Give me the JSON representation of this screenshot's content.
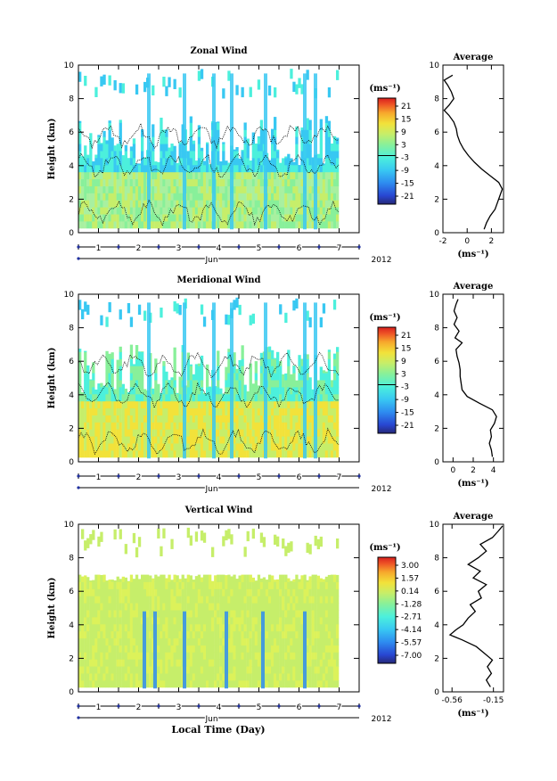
{
  "figure": {
    "xlabel": "Local Time (Day)"
  },
  "chart_data": [
    {
      "type": "heatmap",
      "title": "Zonal Wind",
      "ylabel": "Height (km)",
      "ylim": [
        0,
        10
      ],
      "yticks": [
        "0",
        "2",
        "4",
        "6",
        "8",
        "10"
      ],
      "xticks": [
        "1",
        "2",
        "3",
        "4",
        "5",
        "6",
        "7"
      ],
      "month_label": "Jun",
      "year_label": "2012",
      "colorbar": {
        "unit": "(ms⁻¹)",
        "ticks": [
          "21",
          "15",
          "9",
          "3",
          "-3",
          "-9",
          "-15",
          "-21"
        ]
      },
      "average": {
        "title": "Average",
        "xlabel": "(ms⁻¹)",
        "xticks": [
          "-2",
          "0",
          "2"
        ],
        "xlim": [
          -2,
          3
        ],
        "yticks": [
          "0",
          "2",
          "4",
          "6",
          "8",
          "10"
        ],
        "profile": [
          {
            "h": 0.2,
            "v": 1.4
          },
          {
            "h": 0.6,
            "v": 1.6
          },
          {
            "h": 1.0,
            "v": 1.9
          },
          {
            "h": 1.4,
            "v": 2.3
          },
          {
            "h": 1.8,
            "v": 2.5
          },
          {
            "h": 2.2,
            "v": 2.7
          },
          {
            "h": 2.6,
            "v": 2.9
          },
          {
            "h": 3.0,
            "v": 2.6
          },
          {
            "h": 3.4,
            "v": 1.9
          },
          {
            "h": 3.8,
            "v": 1.2
          },
          {
            "h": 4.2,
            "v": 0.6
          },
          {
            "h": 4.6,
            "v": 0.1
          },
          {
            "h": 5.0,
            "v": -0.3
          },
          {
            "h": 5.4,
            "v": -0.6
          },
          {
            "h": 5.8,
            "v": -0.8
          },
          {
            "h": 6.2,
            "v": -0.9
          },
          {
            "h": 6.6,
            "v": -1.1
          },
          {
            "h": 7.0,
            "v": -1.5
          },
          {
            "h": 7.3,
            "v": -1.9
          },
          {
            "h": 7.6,
            "v": -1.5
          },
          {
            "h": 8.0,
            "v": -1.1
          },
          {
            "h": 8.4,
            "v": -1.3
          },
          {
            "h": 8.8,
            "v": -1.6
          },
          {
            "h": 9.1,
            "v": -1.9
          },
          {
            "h": 9.4,
            "v": -1.2
          }
        ]
      }
    },
    {
      "type": "heatmap",
      "title": "Meridional Wind",
      "ylabel": "Height (km)",
      "ylim": [
        0,
        10
      ],
      "yticks": [
        "0",
        "2",
        "4",
        "6",
        "8",
        "10"
      ],
      "xticks": [
        "1",
        "2",
        "3",
        "4",
        "5",
        "6",
        "7"
      ],
      "month_label": "Jun",
      "year_label": "2012",
      "colorbar": {
        "unit": "(ms⁻¹)",
        "ticks": [
          "21",
          "15",
          "9",
          "3",
          "-3",
          "-9",
          "-15",
          "-21"
        ]
      },
      "average": {
        "title": "Average",
        "xlabel": "(ms⁻¹)",
        "xticks": [
          "0",
          "2",
          "4"
        ],
        "xlim": [
          -1,
          5
        ],
        "yticks": [
          "0",
          "2",
          "4",
          "6",
          "8",
          "10"
        ],
        "profile": [
          {
            "h": 0.3,
            "v": 3.9
          },
          {
            "h": 0.7,
            "v": 3.8
          },
          {
            "h": 1.1,
            "v": 3.6
          },
          {
            "h": 1.5,
            "v": 3.8
          },
          {
            "h": 1.9,
            "v": 3.7
          },
          {
            "h": 2.3,
            "v": 4.1
          },
          {
            "h": 2.7,
            "v": 4.3
          },
          {
            "h": 3.1,
            "v": 3.9
          },
          {
            "h": 3.5,
            "v": 2.6
          },
          {
            "h": 3.9,
            "v": 1.4
          },
          {
            "h": 4.3,
            "v": 0.9
          },
          {
            "h": 4.7,
            "v": 0.8
          },
          {
            "h": 5.1,
            "v": 0.7
          },
          {
            "h": 5.5,
            "v": 0.7
          },
          {
            "h": 5.9,
            "v": 0.6
          },
          {
            "h": 6.3,
            "v": 0.4
          },
          {
            "h": 6.7,
            "v": 0.3
          },
          {
            "h": 7.1,
            "v": 0.9
          },
          {
            "h": 7.4,
            "v": 0.2
          },
          {
            "h": 7.8,
            "v": 0.6
          },
          {
            "h": 8.2,
            "v": 0.1
          },
          {
            "h": 8.6,
            "v": 0.4
          },
          {
            "h": 9.0,
            "v": 0.1
          },
          {
            "h": 9.4,
            "v": 0.3
          },
          {
            "h": 9.7,
            "v": 0.5
          }
        ]
      }
    },
    {
      "type": "heatmap",
      "title": "Vertical Wind",
      "ylabel": "Height (km)",
      "ylim": [
        0,
        10
      ],
      "yticks": [
        "0",
        "2",
        "4",
        "6",
        "8",
        "10"
      ],
      "xticks": [
        "1",
        "2",
        "3",
        "4",
        "5",
        "6",
        "7"
      ],
      "month_label": "Jun",
      "year_label": "2012",
      "colorbar": {
        "unit": "(ms⁻¹)",
        "ticks": [
          "3.00",
          "1.57",
          "0.14",
          "-1.28",
          "-2.71",
          "-4.14",
          "-5.57",
          "-7.00"
        ]
      },
      "average": {
        "title": "Average",
        "xlabel": "(ms⁻¹)",
        "xticks": [
          "-0.56",
          "-0.15"
        ],
        "xlim": [
          -0.65,
          -0.05
        ],
        "yticks": [
          "0",
          "2",
          "4",
          "6",
          "8",
          "10"
        ],
        "profile": [
          {
            "h": 0.3,
            "v": -0.18
          },
          {
            "h": 0.7,
            "v": -0.22
          },
          {
            "h": 1.1,
            "v": -0.17
          },
          {
            "h": 1.5,
            "v": -0.21
          },
          {
            "h": 1.9,
            "v": -0.16
          },
          {
            "h": 2.3,
            "v": -0.24
          },
          {
            "h": 2.7,
            "v": -0.32
          },
          {
            "h": 3.1,
            "v": -0.46
          },
          {
            "h": 3.4,
            "v": -0.58
          },
          {
            "h": 3.7,
            "v": -0.52
          },
          {
            "h": 4.0,
            "v": -0.45
          },
          {
            "h": 4.4,
            "v": -0.4
          },
          {
            "h": 4.8,
            "v": -0.33
          },
          {
            "h": 5.2,
            "v": -0.38
          },
          {
            "h": 5.6,
            "v": -0.27
          },
          {
            "h": 6.0,
            "v": -0.3
          },
          {
            "h": 6.4,
            "v": -0.22
          },
          {
            "h": 6.8,
            "v": -0.35
          },
          {
            "h": 7.2,
            "v": -0.28
          },
          {
            "h": 7.6,
            "v": -0.4
          },
          {
            "h": 8.0,
            "v": -0.3
          },
          {
            "h": 8.4,
            "v": -0.22
          },
          {
            "h": 8.8,
            "v": -0.28
          },
          {
            "h": 9.2,
            "v": -0.16
          },
          {
            "h": 9.6,
            "v": -0.1
          },
          {
            "h": 9.9,
            "v": -0.06
          }
        ]
      }
    }
  ]
}
